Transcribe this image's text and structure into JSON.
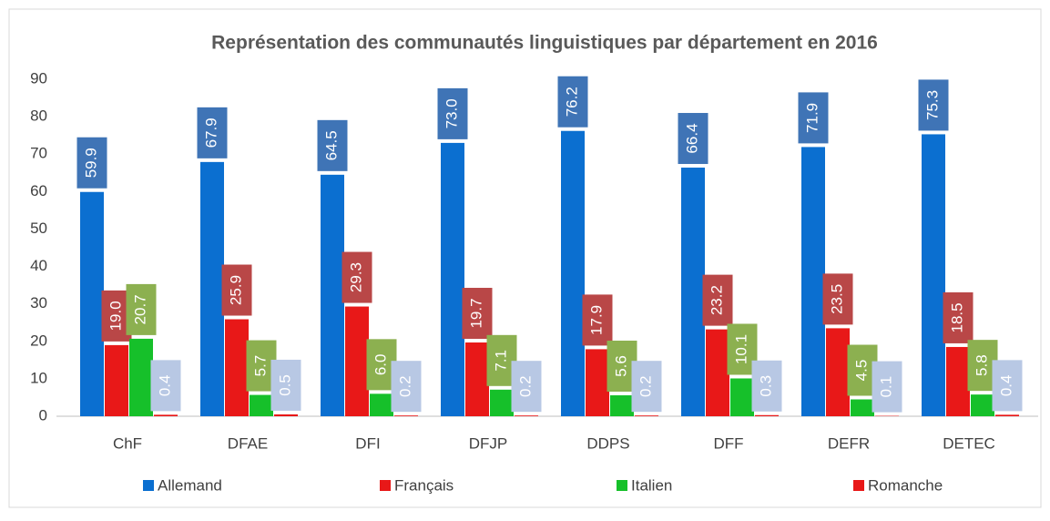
{
  "chart_data": {
    "type": "bar",
    "title": "Représentation des communautés linguistiques par département en 2016",
    "categories": [
      "ChF",
      "DFAE",
      "DFI",
      "DFJP",
      "DDPS",
      "DFF",
      "DEFR",
      "DETEC"
    ],
    "series": [
      {
        "name": "Allemand",
        "color": "#0b6fd0",
        "label_color": "#3f74b6",
        "values": [
          59.9,
          67.9,
          64.5,
          73.0,
          76.2,
          66.4,
          71.9,
          75.3
        ],
        "value_labels": [
          "59.9",
          "67.9",
          "64.5",
          "73.0",
          "76.2",
          "66.4",
          "71.9",
          "75.3"
        ]
      },
      {
        "name": "Français",
        "color": "#e81818",
        "label_color": "#b94747",
        "values": [
          19.0,
          25.9,
          29.3,
          19.7,
          17.9,
          23.2,
          23.5,
          18.5
        ],
        "value_labels": [
          "19.0",
          "25.9",
          "29.3",
          "19.7",
          "17.9",
          "23.2",
          "23.5",
          "18.5"
        ]
      },
      {
        "name": "Italien",
        "color": "#16c02a",
        "label_color": "#8cb050",
        "values": [
          20.7,
          5.7,
          6.0,
          7.1,
          5.6,
          10.1,
          4.5,
          5.8
        ],
        "value_labels": [
          "20.7",
          "5.7",
          "6.0",
          "7.1",
          "5.6",
          "10.1",
          "4.5",
          "5.8"
        ]
      },
      {
        "name": "Romanche",
        "color": "#e81818",
        "label_color": "#b8c8e4",
        "values": [
          0.4,
          0.5,
          0.2,
          0.2,
          0.2,
          0.3,
          0.1,
          0.4
        ],
        "value_labels": [
          "0.4",
          "0.5",
          "0.2",
          "0.2",
          "0.2",
          "0.3",
          "0.1",
          "0.4"
        ]
      }
    ],
    "ylim": [
      0,
      90
    ],
    "yticks": [
      0,
      10,
      20,
      30,
      40,
      50,
      60,
      70,
      80,
      90
    ],
    "grid": false,
    "legend": "bottom"
  }
}
